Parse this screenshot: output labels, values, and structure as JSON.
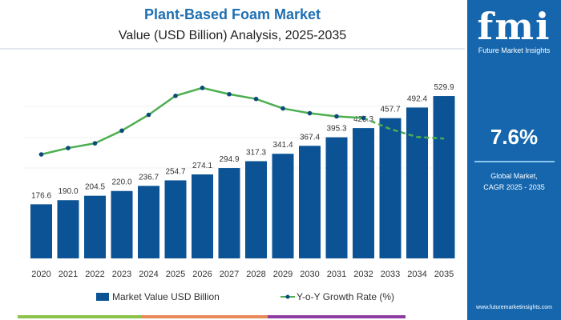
{
  "title": "Plant-Based Foam Market",
  "subtitle": "Value (USD Billion) Analysis, 2025-2035",
  "side": {
    "logo": "fmi",
    "logo_sub": "Future Market Insights",
    "cagr": "7.6%",
    "cagr_label_1": "Global Market,",
    "cagr_label_2": "CAGR 2025 - 2035",
    "url": "www.futuremarketinsights.com"
  },
  "colors": {
    "bar": "#0b5394",
    "line": "#4caf50",
    "marker": "#0b4a7a",
    "panel": "#1566ad"
  },
  "chart_data": {
    "type": "bar+line",
    "categories": [
      "2020",
      "2021",
      "2022",
      "2023",
      "2024",
      "2025",
      "2026",
      "2027",
      "2028",
      "2029",
      "2030",
      "2031",
      "2032",
      "2033",
      "2034",
      "2035"
    ],
    "series": [
      {
        "name": "Market Value USD Billion",
        "type": "bar",
        "values": [
          176.6,
          190.0,
          204.5,
          220.0,
          236.7,
          254.7,
          274.1,
          294.9,
          317.3,
          341.4,
          367.4,
          395.3,
          425.3,
          457.7,
          492.4,
          529.9
        ],
        "labels": [
          "176.6",
          "190.0",
          "204.5",
          "220.0",
          "236.7",
          "254.7",
          "274.1",
          "294.9",
          "317.3",
          "341.4",
          "367.4",
          "395.3",
          "425.3",
          "457.7",
          "492.4",
          "529.9"
        ]
      },
      {
        "name": "Y-o-Y Growth Rate (%)",
        "type": "line",
        "values": [
          6.2,
          6.6,
          6.9,
          7.7,
          8.7,
          9.9,
          10.4,
          10.0,
          9.7,
          9.1,
          8.8,
          8.6,
          8.5,
          7.8,
          7.3,
          7.2
        ],
        "dashed_from": "2032"
      }
    ],
    "grid": true,
    "legend": "bottom"
  }
}
